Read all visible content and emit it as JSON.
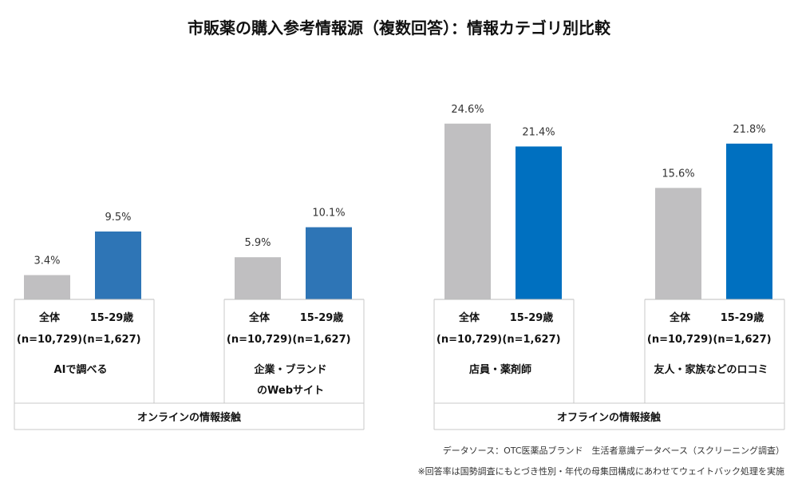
{
  "chart_data": {
    "type": "bar",
    "title": "市販薬の購入参考情報源（複数回答）：情報カテゴリ別比較",
    "series": [
      {
        "name": "全体",
        "n": "(n=10,729)",
        "color": "#c0bfc1"
      },
      {
        "name": "15-29歳",
        "n": "(n=1,627)",
        "color": "#0070c0"
      }
    ],
    "categories": [
      {
        "label_lines": [
          "AIで調べる"
        ],
        "values": [
          3.4,
          9.5
        ],
        "value_labels": [
          "3.4%",
          "9.5%"
        ],
        "series2_color": "#2e75b6"
      },
      {
        "label_lines": [
          "企業・ブランド",
          "のWebサイト"
        ],
        "values": [
          5.9,
          10.1
        ],
        "value_labels": [
          "5.9%",
          "10.1%"
        ],
        "series2_color": "#2e75b6"
      },
      {
        "label_lines": [
          "店員・薬剤師"
        ],
        "values": [
          24.6,
          21.4
        ],
        "value_labels": [
          "24.6%",
          "21.4%"
        ],
        "series2_color": "#0070c0"
      },
      {
        "label_lines": [
          "友人・家族などのロコミ"
        ],
        "values": [
          15.6,
          21.8
        ],
        "value_labels": [
          "15.6%",
          "21.8%"
        ],
        "series2_color": "#0070c0"
      }
    ],
    "groups": [
      {
        "label": "オンラインの情報接触",
        "category_indices": [
          0,
          1
        ]
      },
      {
        "label": "オフラインの情報接触",
        "category_indices": [
          2,
          3
        ]
      }
    ],
    "ylim": [
      0,
      27
    ],
    "footnotes": [
      "データソース：OTC医薬品ブランド　生活者意識データベース（スクリーニング調査）",
      "※回答率は国勢調査にもとづき性別・年代の母集団構成にあわせてウェイトバック処理を実施"
    ]
  }
}
